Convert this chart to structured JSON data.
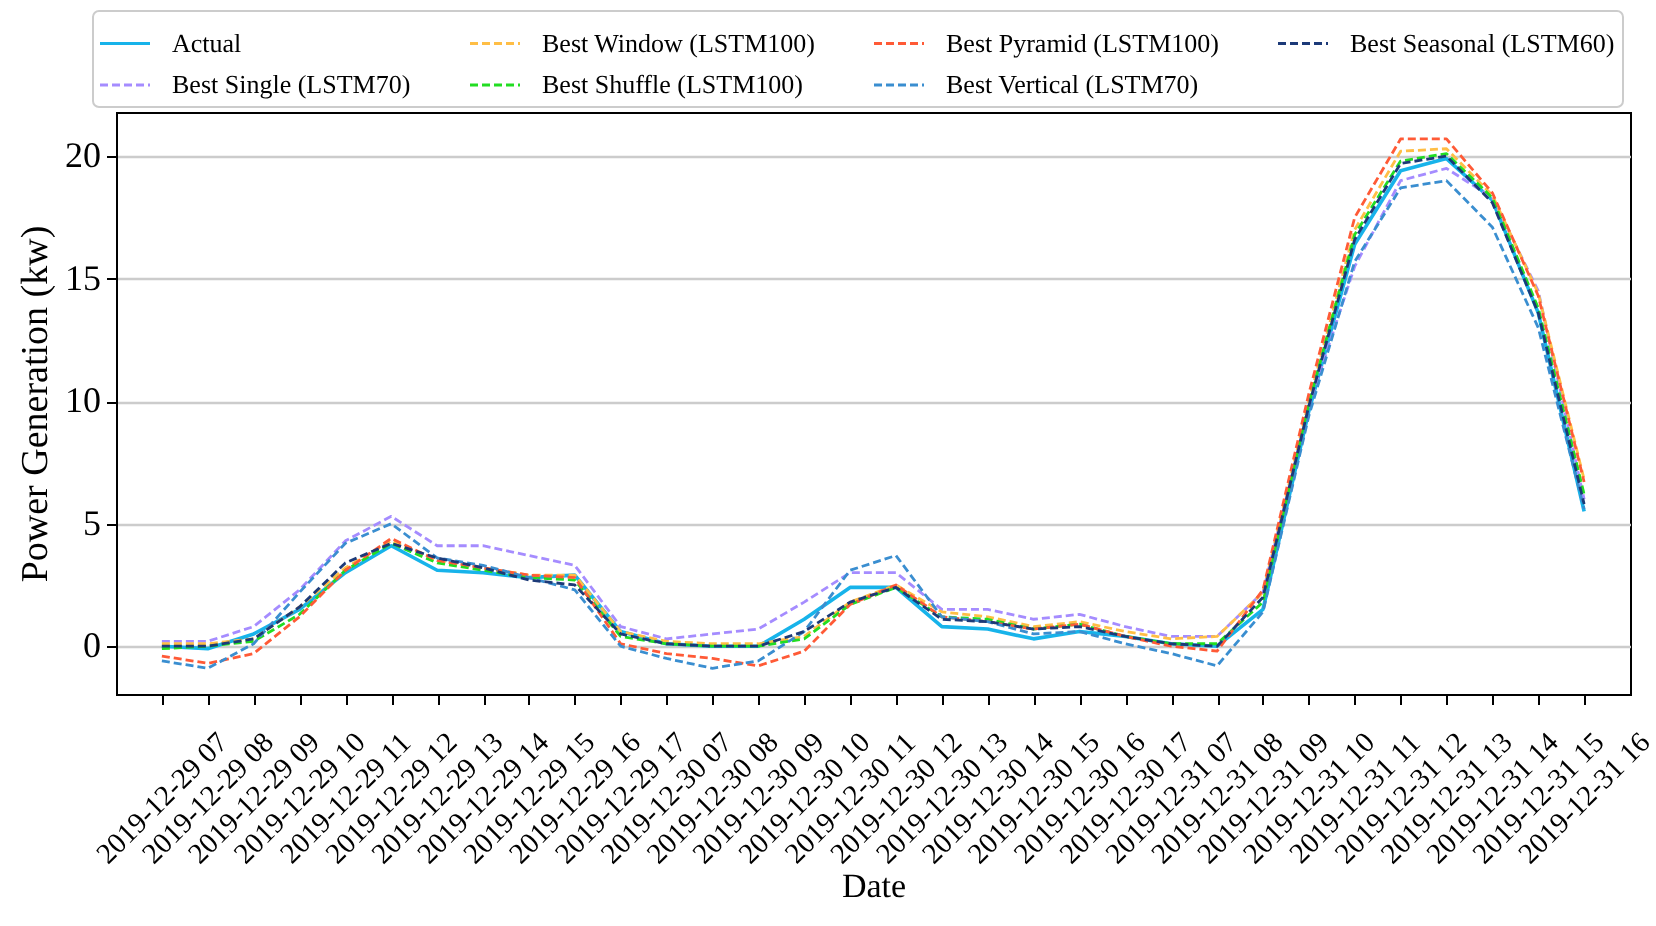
{
  "chart_data": {
    "type": "line",
    "xlabel": "Date",
    "ylabel": "Power Generation (kw)",
    "categories": [
      "2019-12-29 07",
      "2019-12-29 08",
      "2019-12-29 09",
      "2019-12-29 10",
      "2019-12-29 11",
      "2019-12-29 12",
      "2019-12-29 13",
      "2019-12-29 14",
      "2019-12-29 15",
      "2019-12-29 16",
      "2019-12-29 17",
      "2019-12-30 07",
      "2019-12-30 08",
      "2019-12-30 09",
      "2019-12-30 10",
      "2019-12-30 11",
      "2019-12-30 12",
      "2019-12-30 13",
      "2019-12-30 14",
      "2019-12-30 15",
      "2019-12-30 16",
      "2019-12-30 17",
      "2019-12-31 07",
      "2019-12-31 08",
      "2019-12-31 09",
      "2019-12-31 10",
      "2019-12-31 11",
      "2019-12-31 12",
      "2019-12-31 13",
      "2019-12-31 14",
      "2019-12-31 15",
      "2019-12-31 16"
    ],
    "series": [
      {
        "name": "Actual",
        "color": "#17b3ea",
        "line_style": "solid",
        "values": [
          0.0,
          -0.1,
          0.5,
          1.5,
          3.0,
          4.1,
          3.1,
          3.0,
          2.8,
          2.9,
          0.6,
          0.1,
          0.0,
          0.0,
          1.1,
          2.4,
          2.4,
          0.8,
          0.7,
          0.3,
          0.6,
          0.4,
          0.1,
          0.0,
          1.5,
          9.6,
          16.4,
          19.4,
          19.9,
          18.2,
          13.6,
          5.5
        ]
      },
      {
        "name": "Best Single (LSTM70)",
        "color": "#a58cff",
        "line_style": "dashed",
        "values": [
          0.2,
          0.2,
          0.8,
          2.3,
          4.3,
          5.3,
          4.1,
          4.1,
          3.7,
          3.3,
          0.8,
          0.3,
          0.5,
          0.7,
          1.8,
          3.0,
          3.0,
          1.5,
          1.5,
          1.1,
          1.3,
          0.8,
          0.4,
          0.4,
          2.2,
          9.8,
          15.5,
          19.0,
          19.5,
          18.3,
          14.5,
          6.0
        ]
      },
      {
        "name": "Best Window (LSTM100)",
        "color": "#ffbe45",
        "line_style": "dashed",
        "values": [
          0.1,
          0.1,
          0.3,
          1.6,
          3.2,
          4.3,
          3.5,
          3.2,
          2.9,
          2.9,
          0.6,
          0.2,
          0.1,
          0.1,
          0.4,
          1.8,
          2.5,
          1.4,
          1.2,
          0.8,
          1.0,
          0.6,
          0.3,
          0.4,
          2.2,
          10.0,
          17.0,
          20.2,
          20.3,
          18.4,
          14.4,
          6.8
        ]
      },
      {
        "name": "Best Shuffle (LSTM100)",
        "color": "#22dd22",
        "line_style": "dashed",
        "values": [
          -0.1,
          0.0,
          0.2,
          1.3,
          3.1,
          4.2,
          3.4,
          3.1,
          2.8,
          2.7,
          0.4,
          0.1,
          0.0,
          0.0,
          0.3,
          1.7,
          2.4,
          1.2,
          1.1,
          0.7,
          0.9,
          0.4,
          0.1,
          0.1,
          1.8,
          9.9,
          16.8,
          19.8,
          20.1,
          18.3,
          13.8,
          6.2
        ]
      },
      {
        "name": "Best Pyramid (LSTM100)",
        "color": "#ff5a36",
        "line_style": "dashed",
        "values": [
          -0.4,
          -0.7,
          -0.3,
          1.2,
          3.1,
          4.4,
          3.5,
          3.2,
          2.9,
          2.8,
          0.1,
          -0.3,
          -0.5,
          -0.8,
          -0.2,
          1.7,
          2.5,
          1.2,
          1.0,
          0.7,
          0.9,
          0.4,
          0.0,
          -0.2,
          2.3,
          10.3,
          17.5,
          20.7,
          20.7,
          18.5,
          14.3,
          6.7
        ]
      },
      {
        "name": "Best Vertical (LSTM70)",
        "color": "#3a8ed0",
        "line_style": "dashed",
        "values": [
          -0.6,
          -0.9,
          0.1,
          2.2,
          4.2,
          5.0,
          3.6,
          3.3,
          2.8,
          2.3,
          0.0,
          -0.5,
          -0.9,
          -0.6,
          0.6,
          3.1,
          3.7,
          1.2,
          1.0,
          0.5,
          0.6,
          0.1,
          -0.3,
          -0.8,
          1.4,
          9.4,
          15.7,
          18.7,
          19.0,
          17.1,
          13.0,
          5.6
        ]
      },
      {
        "name": "Best Seasonal (LSTM60)",
        "color": "#1c3a78",
        "line_style": "dashed",
        "values": [
          0.0,
          0.0,
          0.3,
          1.6,
          3.4,
          4.2,
          3.6,
          3.2,
          2.7,
          2.5,
          0.5,
          0.1,
          0.0,
          0.0,
          0.6,
          1.8,
          2.4,
          1.1,
          1.0,
          0.7,
          0.8,
          0.4,
          0.1,
          0.0,
          2.0,
          9.8,
          16.6,
          19.7,
          20.0,
          18.1,
          13.6,
          5.8
        ]
      }
    ],
    "ylim": [
      -1.95,
      21.8
    ],
    "yticks": [
      0,
      5,
      10,
      15,
      20
    ],
    "grid": "y",
    "legend": "top"
  }
}
